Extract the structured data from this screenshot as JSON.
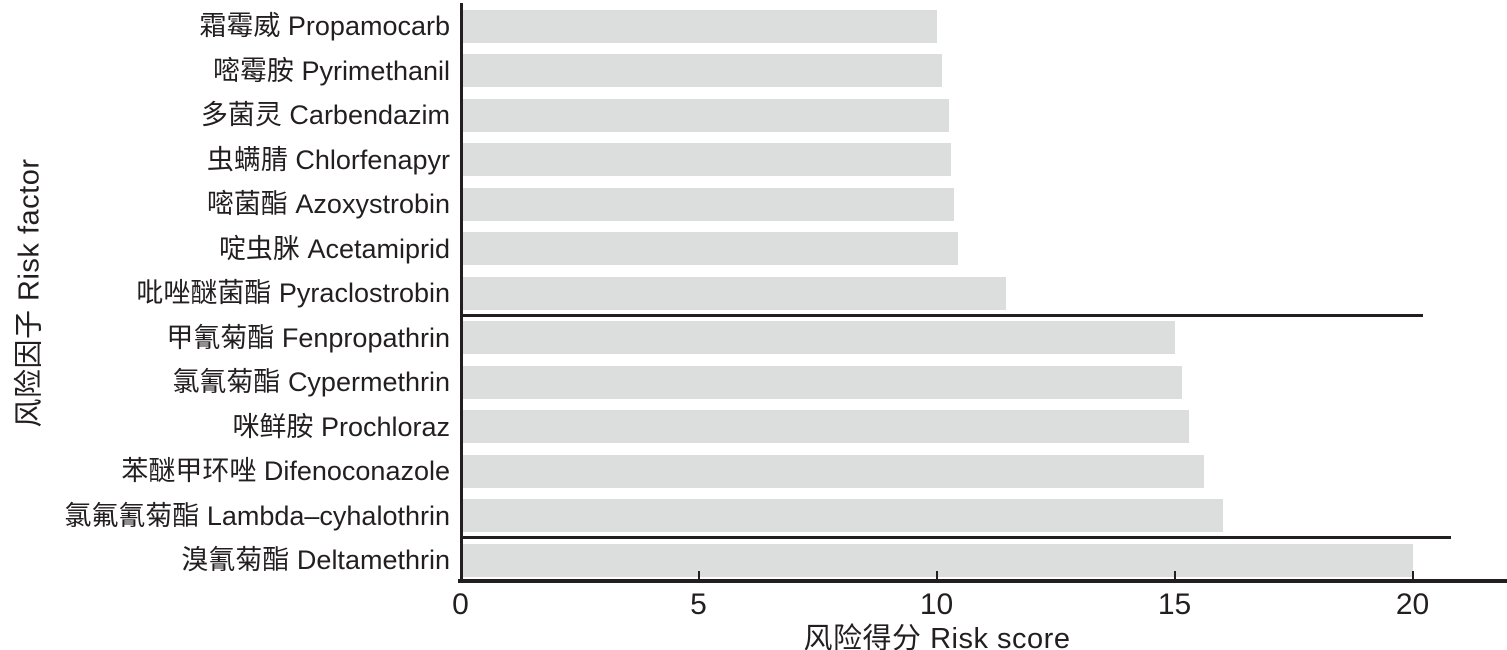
{
  "chart_data": {
    "type": "bar",
    "orientation": "horizontal",
    "title": "",
    "xlabel": "风险得分 Risk score",
    "ylabel": "风险因子 Risk factor",
    "categories": [
      "霜霉威 Propamocarb",
      "嘧霉胺 Pyrimethanil",
      "多菌灵 Carbendazim",
      "虫螨腈 Chlorfenapyr",
      "嘧菌酯 Azoxystrobin",
      "啶虫脒 Acetamiprid",
      "吡唑醚菌酯 Pyraclostrobin",
      "甲氰菊酯 Fenpropathrin",
      "氯氰菊酯 Cypermethrin",
      "咪鲜胺 Prochloraz",
      "苯醚甲环唑 Difenoconazole",
      "氯氟氰菊酯 Lambda–cyhalothrin",
      "溴氰菊酯 Deltamethrin"
    ],
    "values": [
      10.0,
      10.1,
      10.25,
      10.3,
      10.35,
      10.45,
      11.45,
      15.0,
      15.15,
      15.3,
      15.6,
      16.0,
      20.0
    ],
    "xlim": [
      0,
      22
    ],
    "xticks": [
      0,
      5,
      10,
      15,
      20
    ],
    "grid": false,
    "legend": false,
    "bar_color": "#dcdddd",
    "axis_color": "#231f20",
    "separator_lines": [
      {
        "between_rows": [
          6,
          7
        ],
        "from": 0,
        "to": 20.2
      },
      {
        "between_rows": [
          11,
          12
        ],
        "from": 0,
        "to": 20.8
      }
    ]
  }
}
